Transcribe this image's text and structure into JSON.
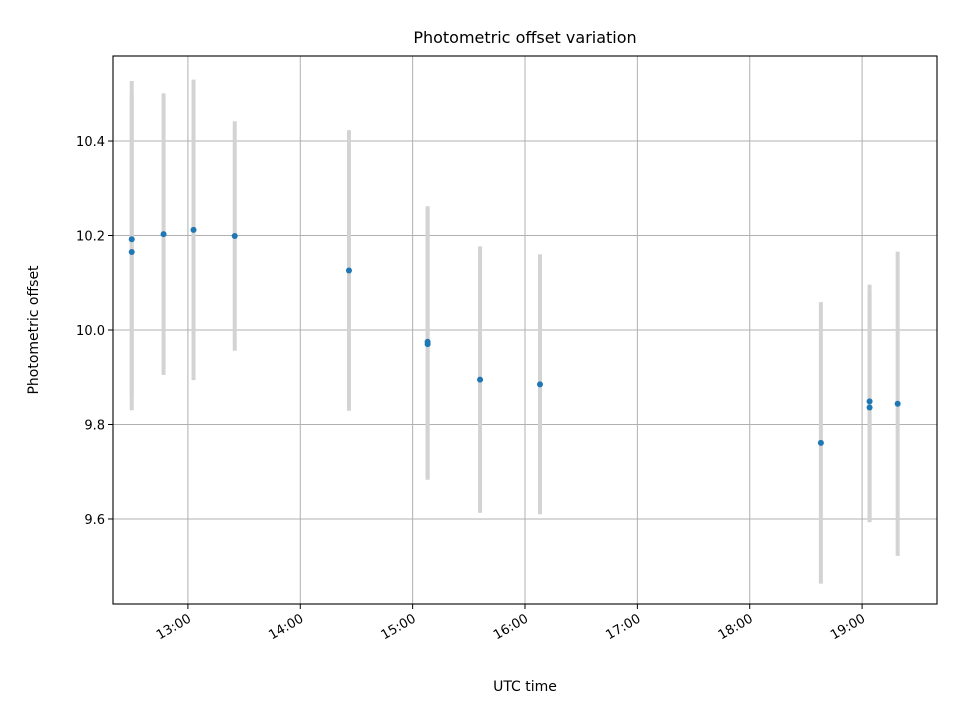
{
  "chart_data": {
    "type": "scatter",
    "title": "Photometric offset variation",
    "xlabel": "UTC time",
    "ylabel": "Photometric offset",
    "x_axis_kind": "time",
    "xlim": [
      "12:20",
      "19:40"
    ],
    "ylim": [
      9.42,
      10.58
    ],
    "xticks": [
      "13:00",
      "14:00",
      "15:00",
      "16:00",
      "17:00",
      "18:00",
      "19:00"
    ],
    "yticks": [
      9.6,
      9.8,
      10.0,
      10.2,
      10.4
    ],
    "grid": true,
    "colors": {
      "points": "#1f77b4",
      "errorbars": "#d3d3d3",
      "grid": "#b0b0b0"
    },
    "points": [
      {
        "t": "12:30",
        "y": 10.192,
        "err": 0.335
      },
      {
        "t": "12:30",
        "y": 10.165,
        "err": 0.335
      },
      {
        "t": "12:47",
        "y": 10.203,
        "err": 0.298
      },
      {
        "t": "13:03",
        "y": 10.212,
        "err": 0.318
      },
      {
        "t": "13:25",
        "y": 10.199,
        "err": 0.243
      },
      {
        "t": "14:26",
        "y": 10.126,
        "err": 0.297
      },
      {
        "t": "15:08",
        "y": 9.975,
        "err": 0.287
      },
      {
        "t": "15:08",
        "y": 9.97,
        "err": 0.287
      },
      {
        "t": "15:36",
        "y": 9.895,
        "err": 0.282
      },
      {
        "t": "16:08",
        "y": 9.885,
        "err": 0.275
      },
      {
        "t": "18:38",
        "y": 9.761,
        "err": 0.298
      },
      {
        "t": "19:04",
        "y": 9.849,
        "err": 0.247
      },
      {
        "t": "19:04",
        "y": 9.836,
        "err": 0.243
      },
      {
        "t": "19:19",
        "y": 9.844,
        "err": 0.322
      }
    ]
  }
}
